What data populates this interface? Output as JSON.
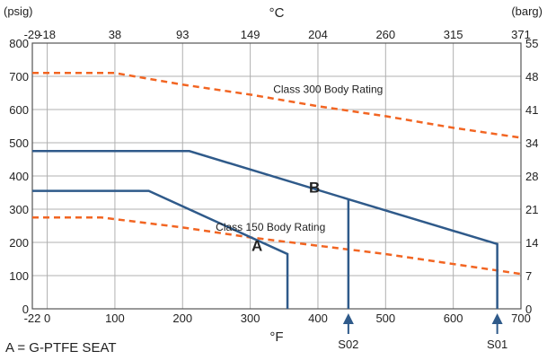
{
  "chart_data": {
    "type": "line",
    "left_unit": "(psig)",
    "right_unit": "(barg)",
    "top_unit": "°C",
    "bottom_unit": "°F",
    "x_range": [
      -22,
      700
    ],
    "y_range": [
      0,
      800
    ],
    "bottom_ticks": [
      "-22",
      "0",
      "100",
      "200",
      "300",
      "400",
      "500",
      "600",
      "700"
    ],
    "bottom_tick_values": [
      -22,
      0,
      100,
      200,
      300,
      400,
      500,
      600,
      700
    ],
    "top_ticks": [
      "-29",
      "-18",
      "38",
      "93",
      "149",
      "204",
      "260",
      "315",
      "371"
    ],
    "left_ticks": [
      "0",
      "100",
      "200",
      "300",
      "400",
      "500",
      "600",
      "700",
      "800"
    ],
    "right_ticks": [
      "0",
      "7",
      "14",
      "21",
      "28",
      "34",
      "41",
      "48",
      "55"
    ],
    "grid": true,
    "series": [
      {
        "name": "Class 300 Body Rating",
        "style": "dashed",
        "color": "#f26522",
        "x": [
          -22,
          100,
          200,
          300,
          400,
          500,
          600,
          700
        ],
        "y": [
          710,
          710,
          675,
          645,
          610,
          580,
          545,
          515
        ]
      },
      {
        "name": "Class 150 Body Rating",
        "style": "dashed",
        "color": "#f26522",
        "x": [
          -22,
          80,
          200,
          300,
          400,
          500,
          600,
          700
        ],
        "y": [
          275,
          275,
          245,
          215,
          190,
          165,
          135,
          105
        ]
      },
      {
        "name": "A",
        "style": "solid",
        "color": "#2f5a8a",
        "x": [
          -22,
          150,
          355,
          355
        ],
        "y": [
          355,
          355,
          165,
          0
        ]
      },
      {
        "name": "B",
        "style": "solid",
        "color": "#2f5a8a",
        "x": [
          -22,
          210,
          445,
          665,
          665
        ],
        "y": [
          475,
          475,
          330,
          195,
          0
        ]
      }
    ],
    "vertical_lines": [
      {
        "x": 445,
        "y_top": 330
      }
    ],
    "annotations": [
      {
        "text": "Class 300 Body Rating",
        "x": 415,
        "y": 650
      },
      {
        "text": "Class 150 Body Rating",
        "x": 330,
        "y": 235
      },
      {
        "text": "A",
        "x": 310,
        "y": 175
      },
      {
        "text": "B",
        "x": 395,
        "y": 350
      }
    ],
    "markers": [
      {
        "label": "S02",
        "x": 445
      },
      {
        "label": "S01",
        "x": 665
      }
    ]
  },
  "key_text": "A = G-PTFE SEAT",
  "colors": {
    "grid": "#b0b0b0",
    "axis": "#555555",
    "solid": "#2f5a8a",
    "dashed": "#f26522"
  }
}
